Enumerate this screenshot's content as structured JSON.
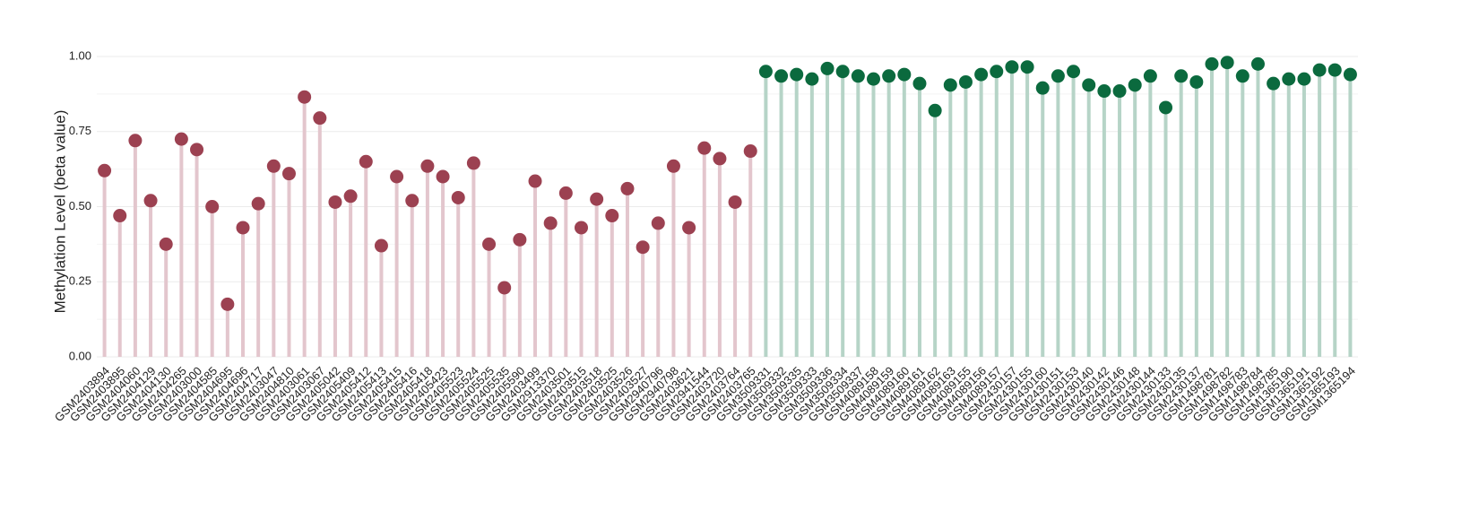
{
  "chart_data": {
    "type": "lollipop",
    "y_label": "Methylation Level (beta value)",
    "ylim": [
      0,
      1
    ],
    "yticks": [
      {
        "value": 0,
        "label": "0.00"
      },
      {
        "value": 0.25,
        "label": "0.25"
      },
      {
        "value": 0.5,
        "label": "0.50"
      },
      {
        "value": 0.75,
        "label": "0.75"
      },
      {
        "value": 1,
        "label": "1.00"
      }
    ],
    "grid": true,
    "series": [
      {
        "color": "#9c4151",
        "stem_color": "#e3c6cd",
        "categories": [
          "GSM2403894",
          "GSM2403895",
          "GSM2404060",
          "GSM2404129",
          "GSM2404130",
          "GSM2404265",
          "GSM2403000",
          "GSM2404585",
          "GSM2404695",
          "GSM2404696",
          "GSM2404717",
          "GSM2403047",
          "GSM2404810",
          "GSM2403061",
          "GSM2403067",
          "GSM2405042",
          "GSM2405409",
          "GSM2405412",
          "GSM2405413",
          "GSM2405415",
          "GSM2405416",
          "GSM2405418",
          "GSM2405423",
          "GSM2405523",
          "GSM2405524",
          "GSM2405525",
          "GSM2405535",
          "GSM2405590",
          "GSM2403499",
          "GSM2913370",
          "GSM2403501",
          "GSM2403515",
          "GSM2403518",
          "GSM2403525",
          "GSM2403526",
          "GSM2403527",
          "GSM2940796",
          "GSM2940798",
          "GSM2403621",
          "GSM2941544",
          "GSM2403720",
          "GSM2403764",
          "GSM2403765"
        ],
        "values": [
          0.62,
          0.47,
          0.72,
          0.52,
          0.375,
          0.725,
          0.69,
          0.5,
          0.175,
          0.43,
          0.51,
          0.635,
          0.61,
          0.865,
          0.795,
          0.515,
          0.535,
          0.65,
          0.37,
          0.6,
          0.52,
          0.635,
          0.6,
          0.53,
          0.645,
          0.375,
          0.23,
          0.39,
          0.585,
          0.445,
          0.545,
          0.43,
          0.525,
          0.47,
          0.56,
          0.365,
          0.445,
          0.635,
          0.43,
          0.695,
          0.66,
          0.515,
          0.685
        ]
      },
      {
        "color": "#0b6a3e",
        "stem_color": "#b6d4c7",
        "categories": [
          "GSM3509331",
          "GSM3509332",
          "GSM3509335",
          "GSM3509333",
          "GSM3509336",
          "GSM3509334",
          "GSM3509337",
          "GSM4089158",
          "GSM4089159",
          "GSM4089160",
          "GSM4089161",
          "GSM4089162",
          "GSM4089163",
          "GSM4089155",
          "GSM4089156",
          "GSM4089157",
          "GSM2430157",
          "GSM2430155",
          "GSM2430160",
          "GSM2430151",
          "GSM2430153",
          "GSM2430140",
          "GSM2430142",
          "GSM2430146",
          "GSM2430148",
          "GSM2430144",
          "GSM2430133",
          "GSM2430135",
          "GSM2430137",
          "GSM1498781",
          "GSM1498782",
          "GSM1498783",
          "GSM1498784",
          "GSM1498785",
          "GSM1365190",
          "GSM1365191",
          "GSM1365192",
          "GSM1365193",
          "GSM1365194"
        ],
        "values": [
          0.95,
          0.935,
          0.94,
          0.925,
          0.96,
          0.95,
          0.935,
          0.925,
          0.935,
          0.94,
          0.91,
          0.82,
          0.905,
          0.915,
          0.94,
          0.95,
          0.965,
          0.965,
          0.895,
          0.935,
          0.95,
          0.905,
          0.885,
          0.885,
          0.905,
          0.935,
          0.83,
          0.935,
          0.915,
          0.975,
          0.98,
          0.935,
          0.975,
          0.91,
          0.925,
          0.925,
          0.955,
          0.955,
          0.94
        ]
      }
    ]
  }
}
